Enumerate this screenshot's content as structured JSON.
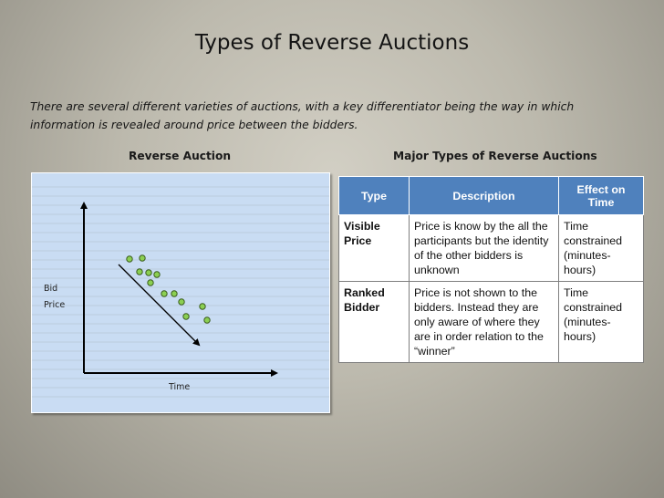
{
  "slide": {
    "title": "Types of Reverse Auctions",
    "intro": "There are several different varieties of auctions, with a key differentiator being the way in which information is revealed around price between the bidders."
  },
  "left_panel": {
    "heading": "Reverse Auction",
    "y_label_line1": "Bid",
    "y_label_line2": "Price",
    "x_label": "Time",
    "marker_color": "#8bcf52",
    "background_color": "#c9dcf3"
  },
  "right_panel": {
    "heading": "Major Types of Reverse Auctions",
    "header_color": "#4f81bd",
    "columns": [
      "Type",
      "Description",
      "Effect on Time"
    ],
    "rows": [
      {
        "type": "Visible Price",
        "description": "Price is know by the all the participants but the identity of the other bidders is unknown",
        "effect": "Time constrained (minutes-hours)"
      },
      {
        "type": "Ranked Bidder",
        "description": "Price is not shown to the bidders.  Instead they are only aware of where they are in order relation to the “winner”",
        "effect": "Time constrained (minutes-hours)"
      }
    ]
  }
}
